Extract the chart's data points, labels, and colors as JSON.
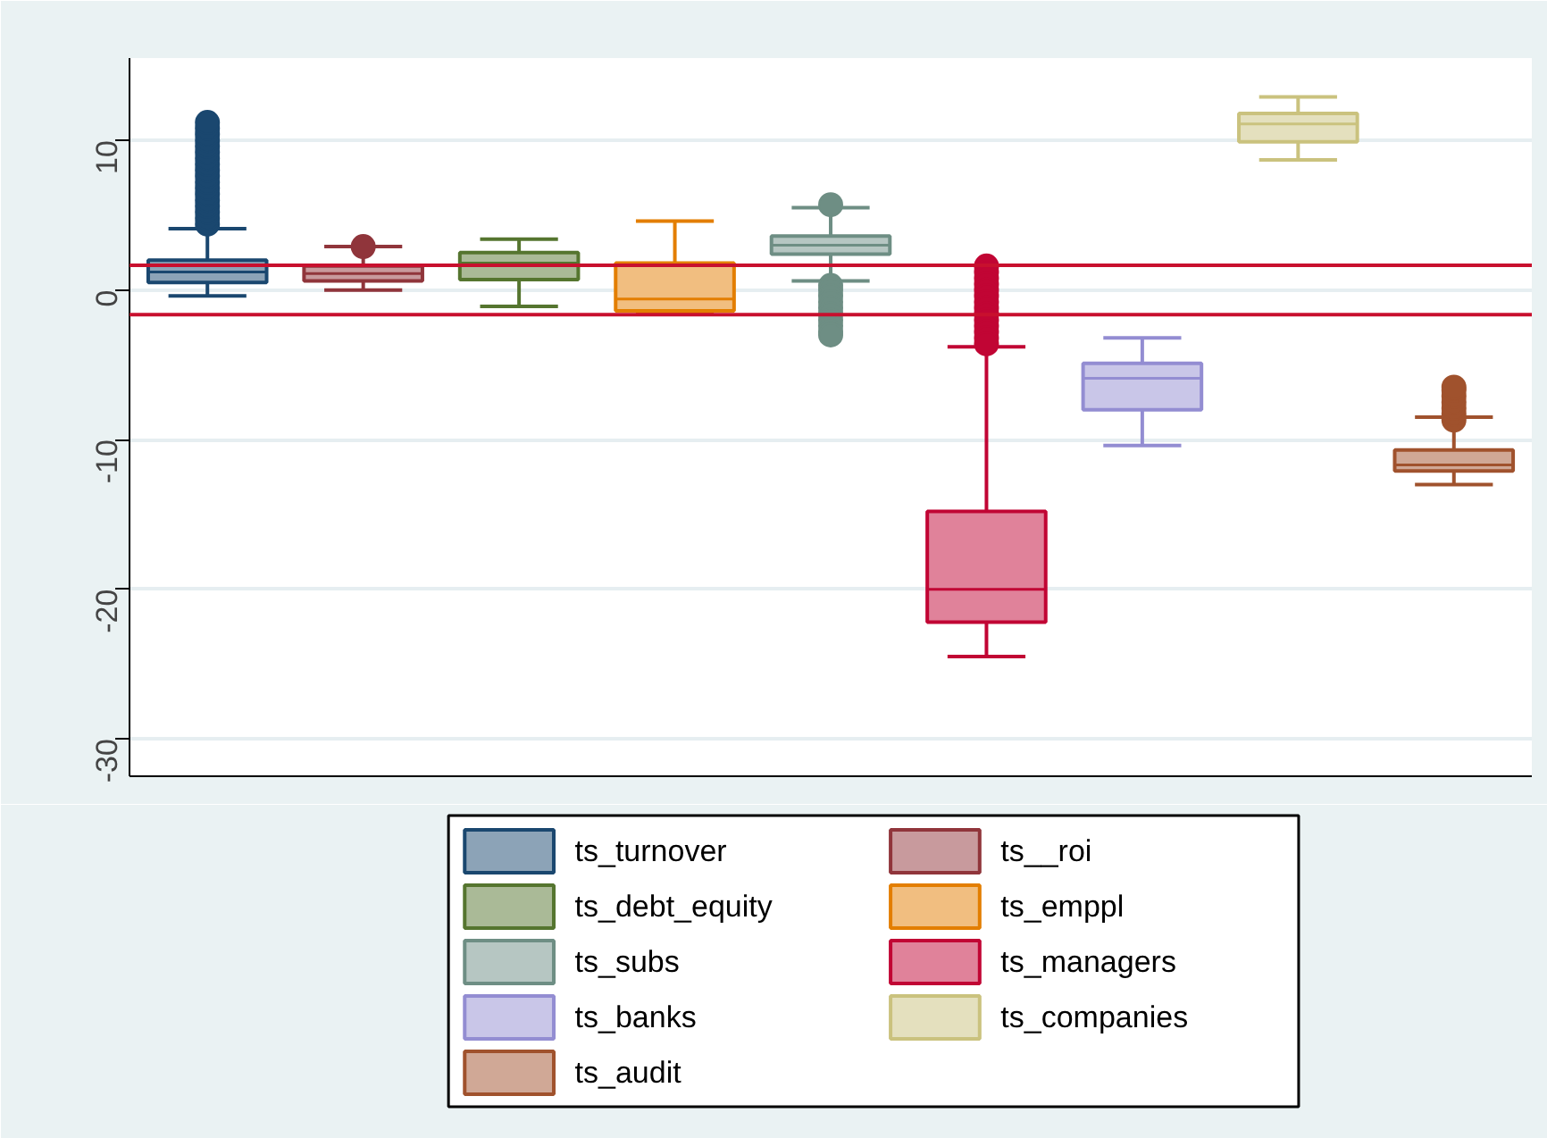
{
  "chart_data": {
    "type": "box",
    "categories": [
      null,
      null,
      null,
      null,
      null,
      null,
      null,
      null,
      null
    ],
    "ylim": [
      -32.5,
      15.5
    ],
    "yticks": [
      -30,
      -20,
      -10,
      0,
      10
    ],
    "grid": "y",
    "legend": "bottom",
    "ref_lines": [
      {
        "axis": "y",
        "value": 1.65,
        "color": "#c8102e"
      },
      {
        "axis": "y",
        "value": -1.65,
        "color": "#c8102e"
      }
    ],
    "series": [
      {
        "name": "ts_turnover",
        "color": "#1a476f",
        "boxes": [
          {
            "low": -0.4,
            "q1": 0.5,
            "median": 1.2,
            "q3": 2.0,
            "high": 4.1,
            "outliers": [
              4.4,
              4.8,
              5.2,
              5.6,
              6.0,
              6.4,
              6.8,
              7.2,
              7.6,
              8.0,
              8.4,
              8.8,
              9.2,
              9.6,
              10.0,
              10.4,
              10.8,
              11.2
            ]
          },
          null,
          null,
          null,
          null,
          null,
          null,
          null,
          null
        ]
      },
      {
        "name": "ts__roi",
        "color": "#90353b",
        "boxes": [
          null,
          {
            "low": 0.0,
            "q1": 0.6,
            "median": 1.1,
            "q3": 1.6,
            "high": 2.9,
            "outliers": [
              2.9
            ]
          },
          null,
          null,
          null,
          null,
          null,
          null,
          null
        ]
      },
      {
        "name": "ts_debt_equity",
        "color": "#55752f",
        "boxes": [
          null,
          null,
          {
            "low": -1.1,
            "q1": 0.7,
            "median": 1.8,
            "q3": 2.5,
            "high": 3.4
          },
          null,
          null,
          null,
          null,
          null,
          null
        ]
      },
      {
        "name": "ts_emppl",
        "color": "#e37e00",
        "boxes": [
          null,
          null,
          null,
          {
            "low": -1.6,
            "q1": -1.4,
            "median": -0.6,
            "q3": 1.8,
            "high": 4.6
          },
          null,
          null,
          null,
          null,
          null
        ]
      },
      {
        "name": "ts_subs",
        "color": "#6e8e84",
        "boxes": [
          null,
          null,
          null,
          null,
          {
            "low": 0.6,
            "q1": 2.4,
            "median": 3.0,
            "q3": 3.6,
            "high": 5.5,
            "outliers": [
              5.7,
              0.3,
              0.0,
              -0.4,
              -0.8,
              -1.2,
              -1.6,
              -2.0,
              -2.4,
              -2.8,
              -3.0
            ]
          },
          null,
          null,
          null,
          null
        ]
      },
      {
        "name": "ts_managers",
        "color": "#c10534",
        "boxes": [
          null,
          null,
          null,
          null,
          null,
          {
            "low": -24.5,
            "q1": -22.2,
            "median": -20.0,
            "q3": -14.8,
            "high": -3.8,
            "outliers": [
              1.6,
              1.2,
              0.8,
              0.4,
              0.0,
              -0.4,
              -0.8,
              -1.2,
              -1.6,
              -2.0,
              -2.4,
              -2.8,
              -3.2,
              -3.6
            ]
          },
          null,
          null,
          null
        ]
      },
      {
        "name": "ts_banks",
        "color": "#938dd2",
        "boxes": [
          null,
          null,
          null,
          null,
          null,
          null,
          {
            "low": -10.4,
            "q1": -8.0,
            "median": -5.9,
            "q3": -4.9,
            "high": -3.2
          },
          null,
          null
        ]
      },
      {
        "name": "ts_companies",
        "color": "#cac27e",
        "boxes": [
          null,
          null,
          null,
          null,
          null,
          null,
          null,
          {
            "low": 8.7,
            "q1": 9.9,
            "median": 11.1,
            "q3": 11.8,
            "high": 12.9
          },
          null
        ]
      },
      {
        "name": "ts_audit",
        "color": "#a0522d",
        "boxes": [
          null,
          null,
          null,
          null,
          null,
          null,
          null,
          null,
          {
            "low": -13.0,
            "q1": -12.1,
            "median": -11.7,
            "q3": -10.7,
            "high": -8.5,
            "outliers": [
              -8.7,
              -8.3,
              -7.9,
              -7.5,
              -7.1,
              -6.7,
              -6.5
            ]
          }
        ]
      }
    ]
  }
}
